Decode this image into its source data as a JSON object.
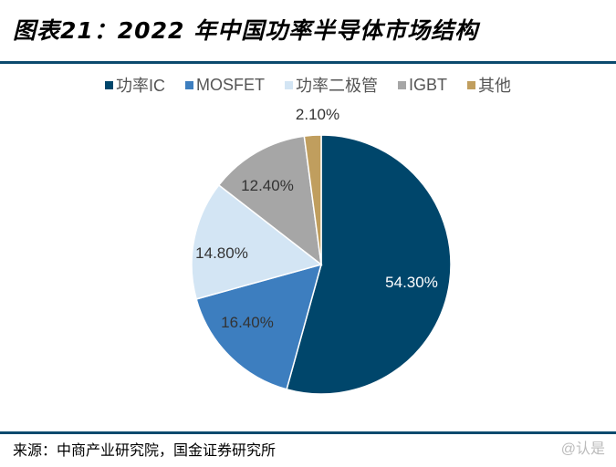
{
  "title": "图表21：2022 年中国功率半导体市场结构",
  "source": "来源：中商产业研究院，国金证券研究所",
  "watermark": "@认是",
  "chart_data": {
    "type": "pie",
    "title": "",
    "start": "top",
    "direction": "clockwise",
    "legend_position": "top",
    "slices": [
      {
        "name": "功率IC",
        "value": 54.3,
        "label": "54.30%",
        "color": "#00466b"
      },
      {
        "name": "MOSFET",
        "value": 16.4,
        "label": "16.40%",
        "color": "#3d7ebf"
      },
      {
        "name": "功率二极管",
        "value": 14.8,
        "label": "14.80%",
        "color": "#d3e5f4"
      },
      {
        "name": "IGBT",
        "value": 12.4,
        "label": "12.40%",
        "color": "#a6a6a6"
      },
      {
        "name": "其他",
        "value": 2.1,
        "label": "2.10%",
        "color": "#c09e5e"
      }
    ]
  }
}
